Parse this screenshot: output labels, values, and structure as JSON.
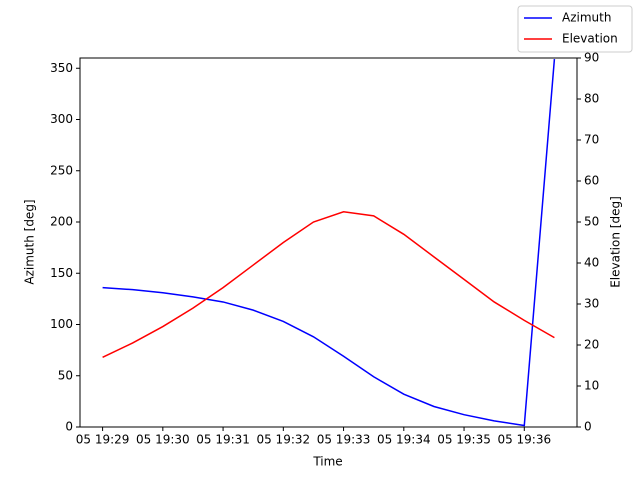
{
  "chart_data": {
    "type": "line",
    "xlabel": "Time",
    "ylabel": "Azimuth [deg]",
    "y2label": "Elevation [deg]",
    "x": [
      29,
      29.5,
      30,
      30.5,
      31,
      31.5,
      32,
      32.5,
      33,
      33.5,
      34,
      34.5,
      35,
      35.5,
      36,
      36.5
    ],
    "xlim": [
      28.625,
      36.875
    ],
    "xticks": [
      {
        "value": 29,
        "label": "05 19:29"
      },
      {
        "value": 30,
        "label": "05 19:30"
      },
      {
        "value": 31,
        "label": "05 19:31"
      },
      {
        "value": 32,
        "label": "05 19:32"
      },
      {
        "value": 33,
        "label": "05 19:33"
      },
      {
        "value": 34,
        "label": "05 19:34"
      },
      {
        "value": 35,
        "label": "05 19:35"
      },
      {
        "value": 36,
        "label": "05 19:36"
      }
    ],
    "ylim": [
      0,
      360
    ],
    "yticks": [
      0,
      50,
      100,
      150,
      200,
      250,
      300,
      350
    ],
    "y2lim": [
      0,
      90
    ],
    "y2ticks": [
      0,
      10,
      20,
      30,
      40,
      50,
      60,
      70,
      80,
      90
    ],
    "legend": "upper right",
    "series": [
      {
        "name": "Azimuth",
        "color": "#0000ff",
        "values": [
          136,
          134,
          131,
          127,
          122,
          114,
          103,
          88,
          69,
          49,
          32,
          20,
          12,
          6,
          1.5,
          359
        ]
      },
      {
        "name": "Elevation",
        "color": "#ff0000",
        "axis": "y2",
        "values": [
          17,
          20.5,
          24.5,
          29,
          34,
          39.5,
          45,
          50,
          52.5,
          51.5,
          47,
          41.5,
          36,
          30.5,
          26,
          21.8
        ]
      }
    ]
  }
}
